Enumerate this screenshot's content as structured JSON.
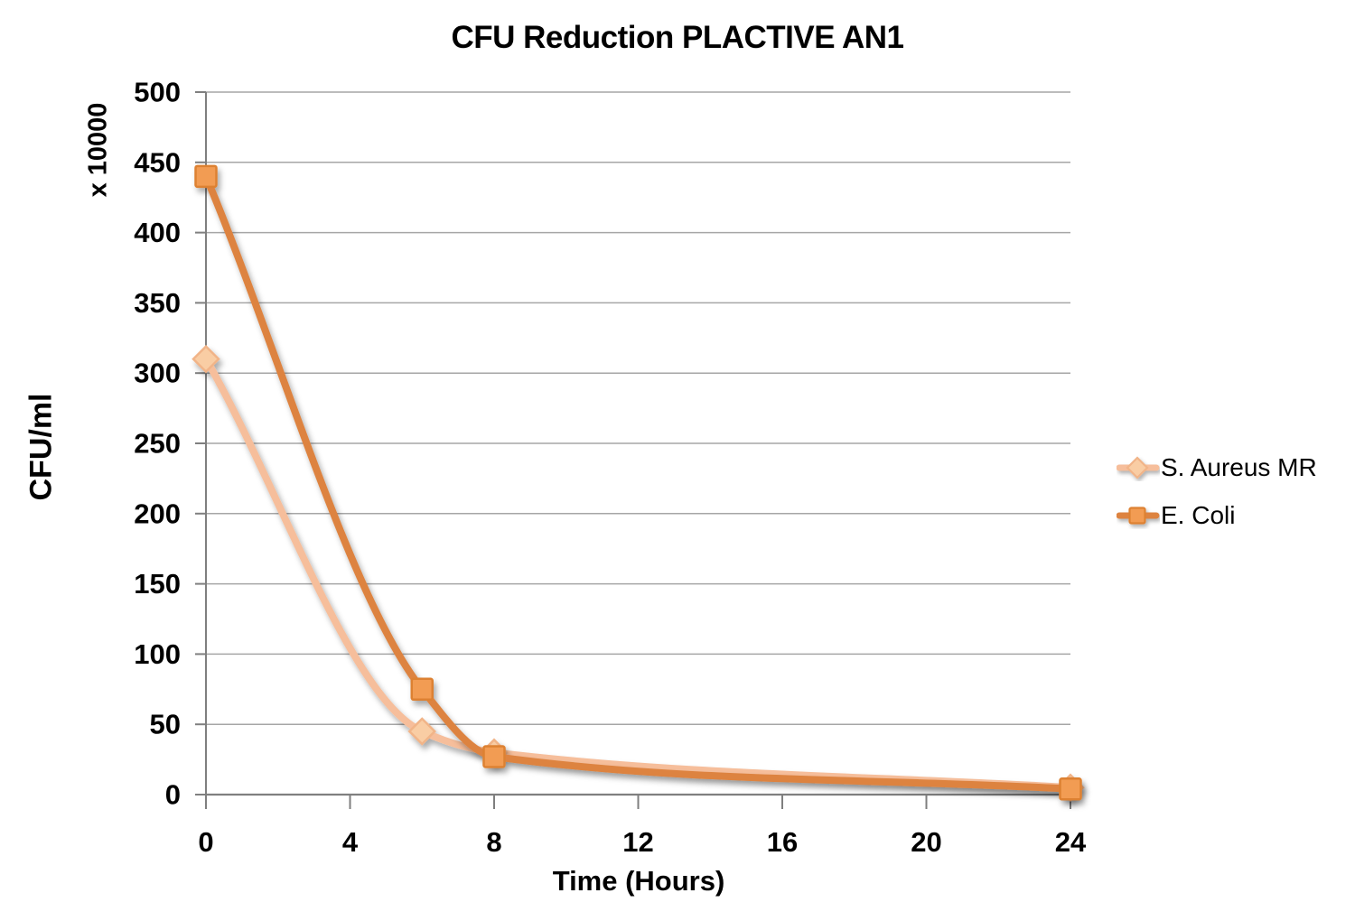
{
  "chart_data": {
    "type": "line",
    "title": "CFU Reduction PLACTIVE AN1",
    "xlabel": "Time (Hours)",
    "ylabel": "CFU/ml",
    "ylabel_secondary": "x 10000",
    "xlim": [
      0,
      24
    ],
    "ylim": [
      0,
      500
    ],
    "x_ticks": [
      0,
      4,
      8,
      12,
      16,
      20,
      24
    ],
    "y_ticks": [
      0,
      50,
      100,
      150,
      200,
      250,
      300,
      350,
      400,
      450,
      500
    ],
    "grid": "horizontal",
    "line_smoothing": true,
    "legend_position": "right",
    "series": [
      {
        "name": "S. Aureus MR",
        "marker": "diamond",
        "line_color": "#F6BE9B",
        "marker_fill": "#F9CDA4",
        "marker_stroke": "#F1B488",
        "x": [
          0,
          6,
          8,
          24
        ],
        "values": [
          310,
          45,
          30,
          5
        ]
      },
      {
        "name": "E. Coli",
        "marker": "square",
        "line_color": "#DD8340",
        "marker_fill": "#F29C52",
        "marker_stroke": "#DD8132",
        "x": [
          0,
          6,
          8,
          24
        ],
        "values": [
          440,
          75,
          27,
          4
        ]
      }
    ]
  }
}
